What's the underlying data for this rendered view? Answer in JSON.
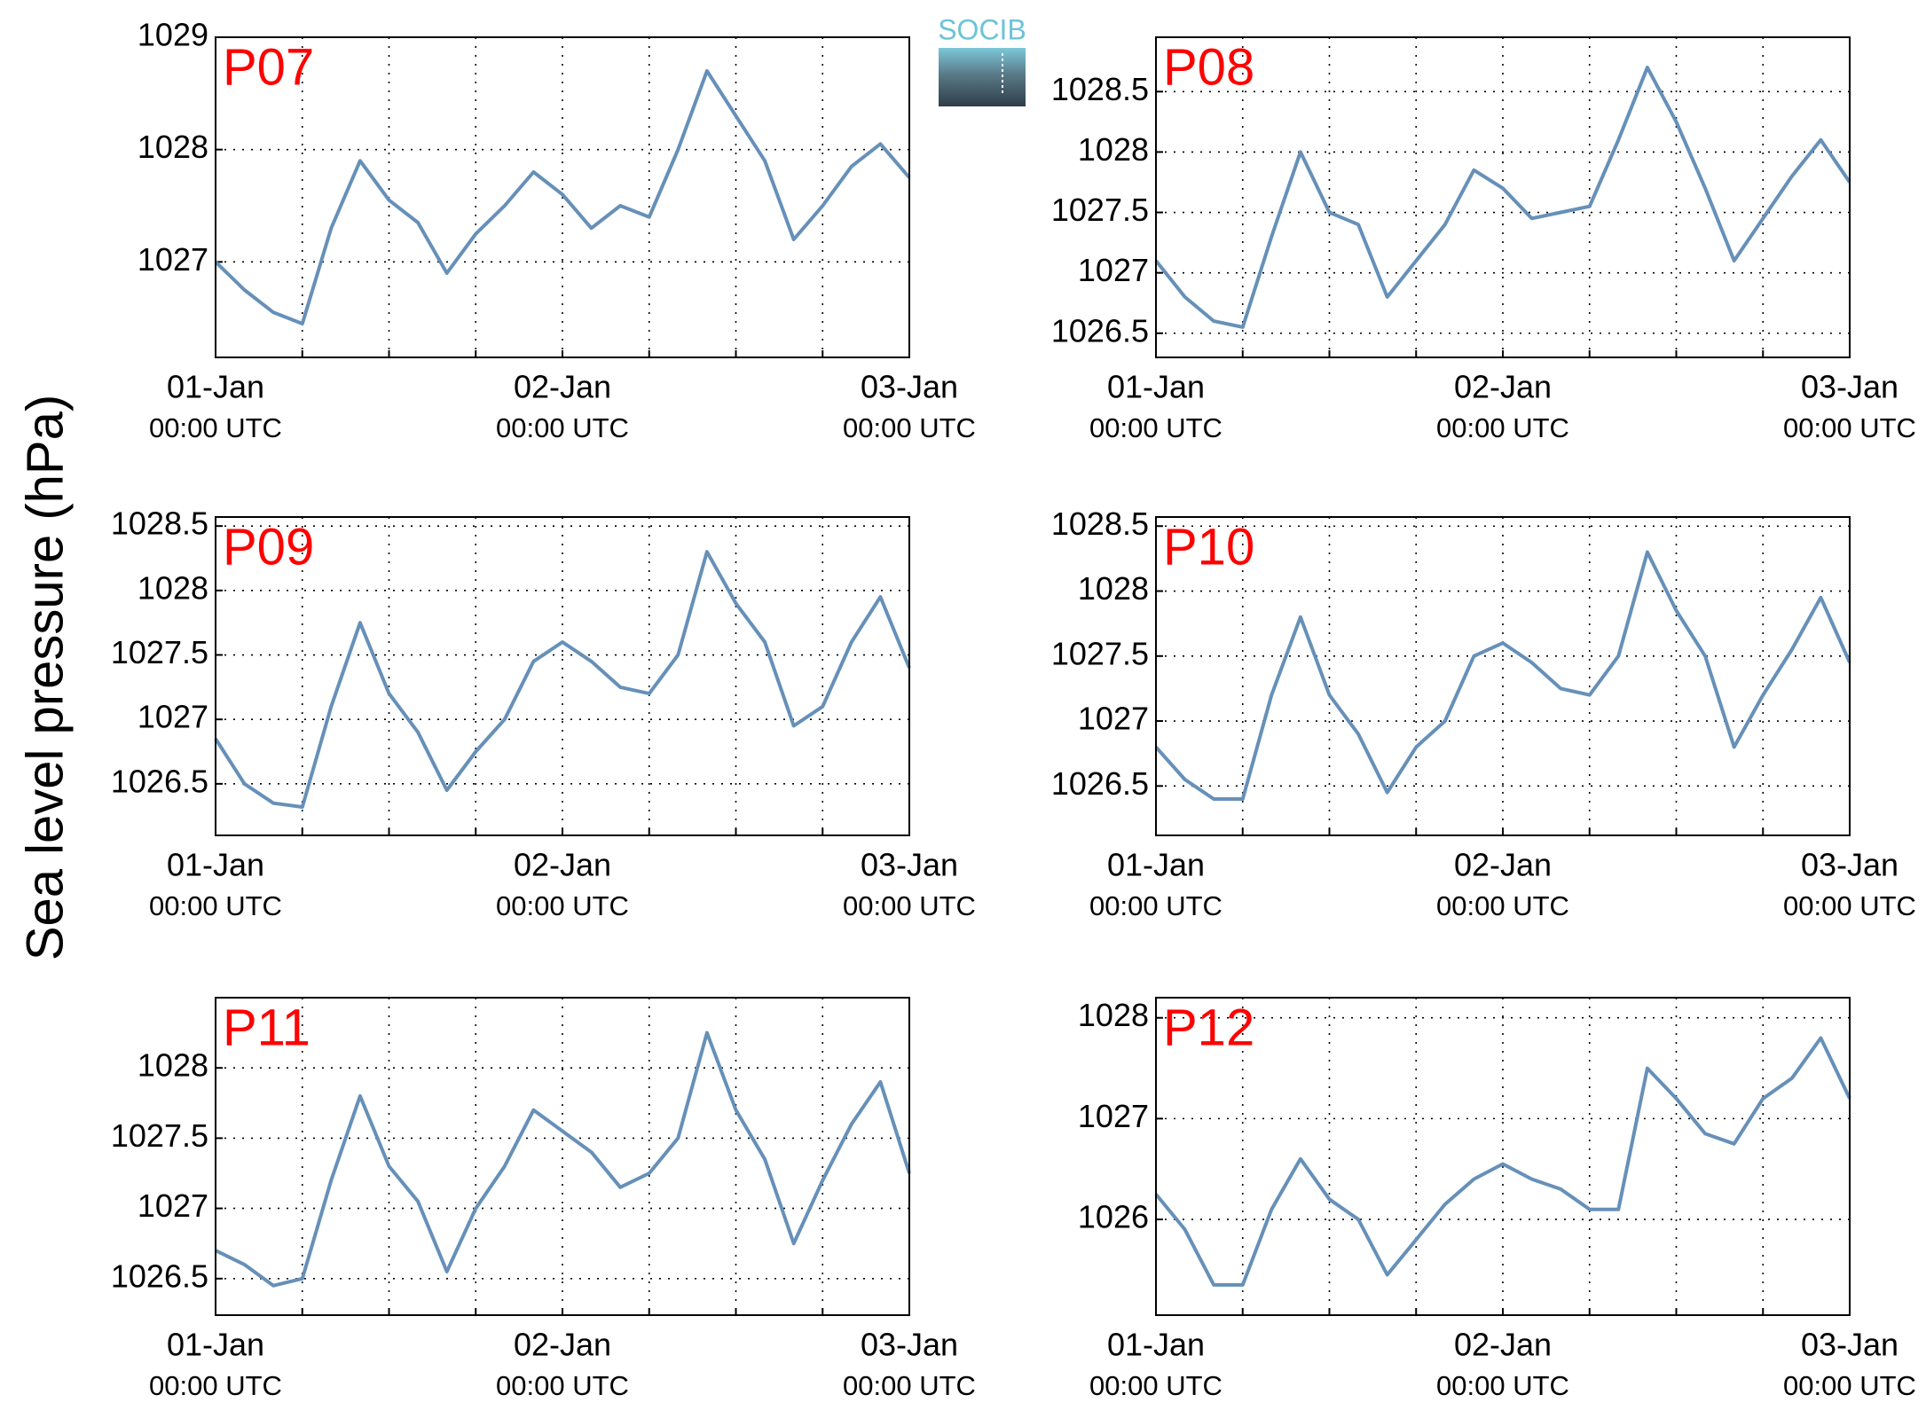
{
  "ylabel": "Sea level pressure (hPa)",
  "logo": "SOCIB",
  "chart_data": [
    {
      "type": "line",
      "title": "P07",
      "color": "#6690b8",
      "grid": true,
      "x": [
        0,
        2,
        4,
        6,
        8,
        10,
        12,
        14,
        16,
        18,
        20,
        22,
        24,
        26,
        28,
        30,
        32,
        34,
        36,
        38,
        40,
        42,
        44,
        46,
        48
      ],
      "values": [
        1027.0,
        1026.75,
        1026.55,
        1026.45,
        1027.3,
        1027.9,
        1027.55,
        1027.35,
        1026.9,
        1027.25,
        1027.5,
        1027.8,
        1027.6,
        1027.3,
        1027.5,
        1027.4,
        1028.0,
        1028.7,
        1028.3,
        1027.9,
        1027.2,
        1027.5,
        1027.85,
        1028.05,
        1027.75
      ],
      "xlim": [
        0,
        48
      ],
      "xticks": [
        {
          "value": 0,
          "label": [
            "01-Jan",
            "00:00 UTC"
          ]
        },
        {
          "value": 24,
          "label": [
            "02-Jan",
            "00:00 UTC"
          ]
        },
        {
          "value": 48,
          "label": [
            "03-Jan",
            "00:00 UTC"
          ]
        }
      ],
      "xminor": [
        6,
        12,
        18,
        30,
        36,
        42
      ],
      "ylim": [
        1026.15,
        1029
      ],
      "yticks": [
        1027,
        1028,
        1029
      ]
    },
    {
      "type": "line",
      "title": "P08",
      "color": "#6690b8",
      "grid": true,
      "x": [
        0,
        2,
        4,
        6,
        8,
        10,
        12,
        14,
        16,
        18,
        20,
        22,
        24,
        26,
        28,
        30,
        32,
        34,
        36,
        38,
        40,
        42,
        44,
        46,
        48
      ],
      "values": [
        1027.1,
        1026.8,
        1026.6,
        1026.55,
        1027.3,
        1028.0,
        1027.5,
        1027.4,
        1026.8,
        1027.1,
        1027.4,
        1027.85,
        1027.7,
        1027.45,
        1027.5,
        1027.55,
        1028.1,
        1028.7,
        1028.25,
        1027.7,
        1027.1,
        1027.45,
        1027.8,
        1028.1,
        1027.75
      ],
      "xlim": [
        0,
        48
      ],
      "xticks": [
        {
          "value": 0,
          "label": [
            "01-Jan",
            "00:00 UTC"
          ]
        },
        {
          "value": 24,
          "label": [
            "02-Jan",
            "00:00 UTC"
          ]
        },
        {
          "value": 48,
          "label": [
            "03-Jan",
            "00:00 UTC"
          ]
        }
      ],
      "xminor": [
        6,
        12,
        18,
        30,
        36,
        42
      ],
      "ylim": [
        1026.3,
        1028.95
      ],
      "yticks": [
        1026.5,
        1027,
        1027.5,
        1028,
        1028.5
      ]
    },
    {
      "type": "line",
      "title": "P09",
      "color": "#6690b8",
      "grid": true,
      "x": [
        0,
        2,
        4,
        6,
        8,
        10,
        12,
        14,
        16,
        18,
        20,
        22,
        24,
        26,
        28,
        30,
        32,
        34,
        36,
        38,
        40,
        42,
        44,
        46,
        48
      ],
      "values": [
        1026.85,
        1026.5,
        1026.35,
        1026.32,
        1027.1,
        1027.75,
        1027.2,
        1026.9,
        1026.45,
        1026.75,
        1027.0,
        1027.45,
        1027.6,
        1027.45,
        1027.25,
        1027.2,
        1027.5,
        1028.3,
        1027.9,
        1027.6,
        1026.95,
        1027.1,
        1027.6,
        1027.95,
        1027.4
      ],
      "xlim": [
        0,
        48
      ],
      "xticks": [
        {
          "value": 0,
          "label": [
            "01-Jan",
            "00:00 UTC"
          ]
        },
        {
          "value": 24,
          "label": [
            "02-Jan",
            "00:00 UTC"
          ]
        },
        {
          "value": 48,
          "label": [
            "03-Jan",
            "00:00 UTC"
          ]
        }
      ],
      "xminor": [
        6,
        12,
        18,
        30,
        36,
        42
      ],
      "ylim": [
        1026.1,
        1028.57
      ],
      "yticks": [
        1026.5,
        1027,
        1027.5,
        1028,
        1028.5
      ]
    },
    {
      "type": "line",
      "title": "P10",
      "color": "#6690b8",
      "grid": true,
      "x": [
        0,
        2,
        4,
        6,
        8,
        10,
        12,
        14,
        16,
        18,
        20,
        22,
        24,
        26,
        28,
        30,
        32,
        34,
        36,
        38,
        40,
        42,
        44,
        46,
        48
      ],
      "values": [
        1026.8,
        1026.55,
        1026.4,
        1026.4,
        1027.2,
        1027.8,
        1027.2,
        1026.9,
        1026.45,
        1026.8,
        1027.0,
        1027.5,
        1027.6,
        1027.45,
        1027.25,
        1027.2,
        1027.5,
        1028.3,
        1027.85,
        1027.5,
        1026.8,
        1027.2,
        1027.55,
        1027.95,
        1027.45
      ],
      "xlim": [
        0,
        48
      ],
      "xticks": [
        {
          "value": 0,
          "label": [
            "01-Jan",
            "00:00 UTC"
          ]
        },
        {
          "value": 24,
          "label": [
            "02-Jan",
            "00:00 UTC"
          ]
        },
        {
          "value": 48,
          "label": [
            "03-Jan",
            "00:00 UTC"
          ]
        }
      ],
      "xminor": [
        6,
        12,
        18,
        30,
        36,
        42
      ],
      "ylim": [
        1026.12,
        1028.57
      ],
      "yticks": [
        1026.5,
        1027,
        1027.5,
        1028,
        1028.5
      ]
    },
    {
      "type": "line",
      "title": "P11",
      "color": "#6690b8",
      "grid": true,
      "x": [
        0,
        2,
        4,
        6,
        8,
        10,
        12,
        14,
        16,
        18,
        20,
        22,
        24,
        26,
        28,
        30,
        32,
        34,
        36,
        38,
        40,
        42,
        44,
        46,
        48
      ],
      "values": [
        1026.7,
        1026.6,
        1026.45,
        1026.5,
        1027.2,
        1027.8,
        1027.3,
        1027.05,
        1026.55,
        1027.0,
        1027.3,
        1027.7,
        1027.55,
        1027.4,
        1027.15,
        1027.25,
        1027.5,
        1028.25,
        1027.7,
        1027.35,
        1026.75,
        1027.2,
        1027.6,
        1027.9,
        1027.25
      ],
      "xlim": [
        0,
        48
      ],
      "xticks": [
        {
          "value": 0,
          "label": [
            "01-Jan",
            "00:00 UTC"
          ]
        },
        {
          "value": 24,
          "label": [
            "02-Jan",
            "00:00 UTC"
          ]
        },
        {
          "value": 48,
          "label": [
            "03-Jan",
            "00:00 UTC"
          ]
        }
      ],
      "xminor": [
        6,
        12,
        18,
        30,
        36,
        42
      ],
      "ylim": [
        1026.24,
        1028.5
      ],
      "yticks": [
        1026.5,
        1027,
        1027.5,
        1028
      ]
    },
    {
      "type": "line",
      "title": "P12",
      "color": "#6690b8",
      "grid": true,
      "x": [
        0,
        2,
        4,
        6,
        8,
        10,
        12,
        14,
        16,
        18,
        20,
        22,
        24,
        26,
        28,
        30,
        32,
        34,
        36,
        38,
        40,
        42,
        44,
        46,
        48
      ],
      "values": [
        1026.25,
        1025.9,
        1025.35,
        1025.35,
        1026.1,
        1026.6,
        1026.2,
        1026.0,
        1025.45,
        1025.8,
        1026.15,
        1026.4,
        1026.55,
        1026.4,
        1026.3,
        1026.1,
        1026.1,
        1027.5,
        1027.2,
        1026.85,
        1026.75,
        1027.2,
        1027.4,
        1027.8,
        1027.2
      ],
      "xlim": [
        0,
        48
      ],
      "xticks": [
        {
          "value": 0,
          "label": [
            "01-Jan",
            "00:00 UTC"
          ]
        },
        {
          "value": 24,
          "label": [
            "02-Jan",
            "00:00 UTC"
          ]
        },
        {
          "value": 48,
          "label": [
            "03-Jan",
            "00:00 UTC"
          ]
        }
      ],
      "xminor": [
        6,
        12,
        18,
        30,
        36,
        42
      ],
      "ylim": [
        1025.05,
        1028.2
      ],
      "yticks": [
        1026,
        1027,
        1028
      ]
    }
  ]
}
